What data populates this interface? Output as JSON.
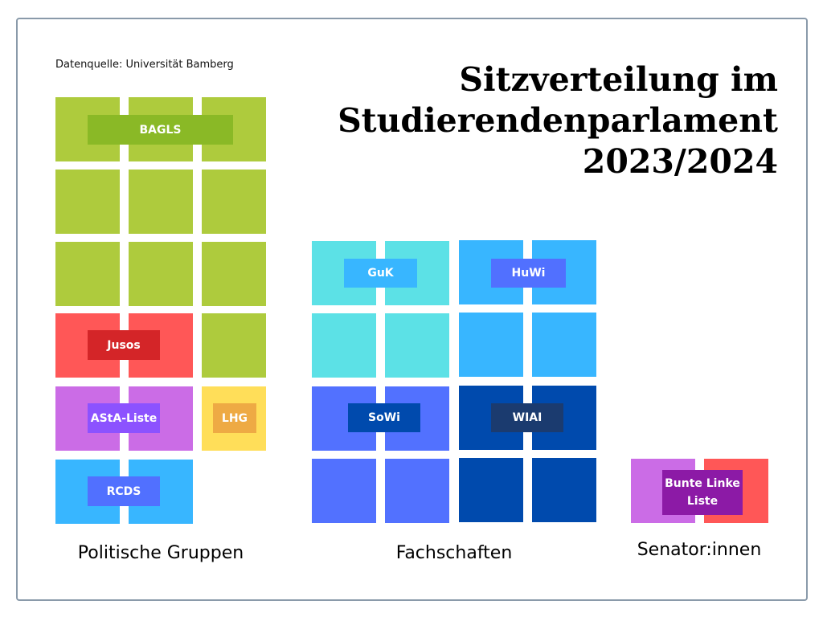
{
  "source": "Datenquelle: Universität Bamberg",
  "title_lines": [
    "Sitzverteilung im",
    "Studierendenparlament",
    "2023/2024"
  ],
  "groups": [
    {
      "label": "Politische Gruppen",
      "parties": [
        {
          "name": "BAGLS",
          "seats": 10,
          "color": "#aecb3d",
          "label_color": "#8ab926"
        },
        {
          "name": "Jusos",
          "seats": 2,
          "color": "#ff5757",
          "label_color": "#d42528"
        },
        {
          "name": "AStA-Liste",
          "seats": 2,
          "color": "#cb6ce6",
          "label_color": "#8c52ff"
        },
        {
          "name": "LHG",
          "seats": 1,
          "color": "#ffde59",
          "label_color": "#eeaa44"
        },
        {
          "name": "RCDS",
          "seats": 2,
          "color": "#38b6ff",
          "label_color": "#5170ff"
        }
      ]
    },
    {
      "label": "Fachschaften",
      "parties": [
        {
          "name": "GuK",
          "seats": 4,
          "color": "#5ce1e6",
          "label_color": "#38b6ff"
        },
        {
          "name": "HuWi",
          "seats": 4,
          "color": "#38b6ff",
          "label_color": "#5170ff"
        },
        {
          "name": "SoWi",
          "seats": 4,
          "color": "#5271ff",
          "label_color": "#004aad"
        },
        {
          "name": "WIAI",
          "seats": 4,
          "color": "#004aad",
          "label_color": "#1b3b6f"
        }
      ]
    },
    {
      "label": "Senator:innen",
      "parties": [
        {
          "name": "Bunte Linke Liste",
          "seats": 2,
          "colors": [
            "#cb6ce6",
            "#ff5757"
          ],
          "label_color": "#8c1aa6"
        }
      ]
    }
  ]
}
